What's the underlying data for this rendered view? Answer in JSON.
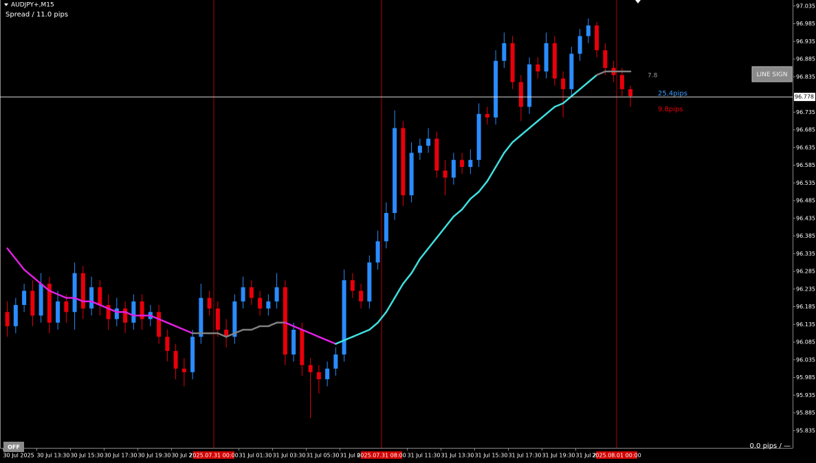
{
  "chart_data": {
    "type": "candlestick",
    "title": "AUDJPY+,M15",
    "subtitle": "Spread / 11.0 pips",
    "categories": [
      "30 Jul 2025",
      null,
      null,
      null,
      "30 Jul 13:30",
      null,
      null,
      null,
      "30 Jul 15:30",
      null,
      null,
      null,
      "30 Jul 17:30",
      null,
      null,
      null,
      "30 Jul 19:30",
      null,
      null,
      null,
      "30 Jul 21:",
      null,
      null,
      null,
      null,
      null,
      null,
      null,
      "31 Jul 01:30",
      null,
      null,
      null,
      "31 Jul 03:30",
      null,
      null,
      null,
      "31 Jul 05:30",
      null,
      null,
      null,
      "31 Jul 07:",
      null,
      null,
      null,
      null,
      null,
      null,
      null,
      "31 Jul 11:30",
      null,
      null,
      null,
      "31 Jul 13:30",
      null,
      null,
      null,
      "31 Jul 15:30",
      null,
      null,
      null,
      "31 Jul 17:30",
      null,
      null,
      null,
      "31 Jul 19:30",
      null,
      null,
      null,
      "31 Jul 21:",
      null,
      null,
      null,
      null,
      null,
      null
    ],
    "open": [
      96.17,
      96.13,
      96.19,
      96.23,
      96.16,
      96.25,
      96.14,
      96.2,
      96.17,
      96.28,
      96.18,
      96.24,
      96.19,
      96.15,
      96.18,
      96.14,
      96.2,
      96.15,
      96.17,
      96.1,
      96.06,
      96.01,
      96.0,
      96.1,
      96.21,
      96.18,
      96.12,
      96.1,
      96.2,
      96.24,
      96.21,
      96.18,
      96.2,
      96.24,
      96.05,
      96.12,
      96.02,
      96.0,
      95.98,
      96.01,
      96.05,
      96.26,
      96.23,
      96.2,
      96.31,
      96.37,
      96.45,
      96.69,
      96.5,
      96.62,
      96.64,
      96.66,
      96.57,
      96.55,
      96.6,
      96.58,
      96.6,
      96.73,
      96.72,
      96.88,
      96.93,
      96.82,
      96.75,
      96.87,
      96.85,
      96.93,
      96.83,
      96.8,
      96.9,
      96.95,
      96.98,
      96.91,
      96.86,
      96.84,
      96.8
    ],
    "high": [
      96.2,
      96.21,
      96.25,
      96.26,
      96.28,
      96.27,
      96.23,
      96.22,
      96.31,
      96.3,
      96.27,
      96.26,
      96.22,
      96.21,
      96.2,
      96.22,
      96.22,
      96.19,
      96.19,
      96.12,
      96.08,
      96.04,
      96.12,
      96.25,
      96.23,
      96.2,
      96.15,
      96.22,
      96.27,
      96.26,
      96.23,
      96.22,
      96.28,
      96.26,
      96.14,
      96.14,
      96.04,
      96.02,
      96.03,
      96.07,
      96.29,
      96.28,
      96.25,
      96.33,
      96.4,
      96.48,
      96.74,
      96.71,
      96.65,
      96.66,
      96.69,
      96.68,
      96.6,
      96.62,
      96.62,
      96.63,
      96.76,
      96.75,
      96.91,
      96.96,
      96.95,
      96.84,
      96.89,
      96.89,
      96.96,
      96.95,
      96.85,
      96.92,
      96.97,
      97.0,
      96.99,
      96.93,
      96.88,
      96.86,
      96.81
    ],
    "low": [
      96.1,
      96.11,
      96.17,
      96.13,
      96.14,
      96.11,
      96.12,
      96.14,
      96.12,
      96.15,
      96.16,
      96.16,
      96.12,
      96.13,
      96.11,
      96.12,
      96.12,
      96.13,
      96.08,
      96.03,
      95.98,
      95.96,
      95.98,
      96.08,
      96.16,
      96.1,
      96.07,
      96.08,
      96.18,
      96.19,
      96.16,
      96.16,
      96.18,
      96.02,
      96.03,
      95.99,
      95.87,
      95.94,
      95.96,
      95.99,
      96.03,
      96.21,
      96.18,
      96.18,
      96.29,
      96.35,
      96.43,
      96.47,
      96.48,
      96.6,
      96.62,
      96.55,
      96.5,
      96.53,
      96.56,
      96.56,
      96.58,
      96.7,
      96.7,
      96.86,
      96.8,
      96.71,
      96.73,
      96.83,
      96.83,
      96.81,
      96.72,
      96.78,
      96.88,
      96.93,
      96.89,
      96.84,
      96.82,
      96.78,
      96.75
    ],
    "close": [
      96.13,
      96.19,
      96.23,
      96.16,
      96.25,
      96.14,
      96.2,
      96.17,
      96.28,
      96.18,
      96.24,
      96.19,
      96.15,
      96.18,
      96.14,
      96.2,
      96.15,
      96.17,
      96.1,
      96.06,
      96.01,
      96.0,
      96.1,
      96.21,
      96.18,
      96.12,
      96.1,
      96.2,
      96.24,
      96.21,
      96.18,
      96.2,
      96.24,
      96.05,
      96.12,
      96.02,
      96.0,
      95.98,
      96.01,
      96.05,
      96.26,
      96.23,
      96.2,
      96.31,
      96.37,
      96.45,
      96.69,
      96.5,
      96.62,
      96.64,
      96.66,
      96.57,
      96.55,
      96.6,
      96.58,
      96.6,
      96.73,
      96.72,
      96.88,
      96.93,
      96.82,
      96.75,
      96.87,
      96.85,
      96.93,
      96.83,
      96.8,
      96.9,
      96.95,
      96.98,
      96.91,
      96.86,
      96.84,
      96.8,
      96.78
    ],
    "up_color": "#2a8cff",
    "down_color": "#e8000b",
    "ma": {
      "values": [
        96.35,
        96.32,
        96.29,
        96.27,
        96.25,
        96.23,
        96.22,
        96.21,
        96.21,
        96.2,
        96.2,
        96.19,
        96.18,
        96.17,
        96.17,
        96.16,
        96.16,
        96.16,
        96.15,
        96.14,
        96.13,
        96.12,
        96.11,
        96.11,
        96.11,
        96.11,
        96.1,
        96.11,
        96.12,
        96.12,
        96.13,
        96.13,
        96.14,
        96.14,
        96.13,
        96.12,
        96.11,
        96.1,
        96.09,
        96.08,
        96.09,
        96.1,
        96.11,
        96.12,
        96.14,
        96.17,
        96.21,
        96.25,
        96.28,
        96.32,
        96.35,
        96.38,
        96.41,
        96.44,
        96.46,
        96.49,
        96.51,
        96.54,
        96.58,
        96.62,
        96.65,
        96.67,
        96.69,
        96.71,
        96.73,
        96.75,
        96.76,
        96.78,
        96.8,
        96.82,
        96.84,
        96.85,
        96.85,
        96.85,
        96.85
      ],
      "colors": [
        "#e020e0",
        "#e020e0",
        "#e020e0",
        "#e020e0",
        "#e020e0",
        "#e020e0",
        "#e020e0",
        "#e020e0",
        "#e020e0",
        "#e020e0",
        "#e020e0",
        "#e020e0",
        "#e020e0",
        "#e020e0",
        "#e020e0",
        "#e020e0",
        "#e020e0",
        "#e020e0",
        "#e020e0",
        "#e020e0",
        "#e020e0",
        "#e020e0",
        "#e020e0",
        "#808080",
        "#808080",
        "#808080",
        "#808080",
        "#808080",
        "#808080",
        "#808080",
        "#808080",
        "#808080",
        "#808080",
        "#808080",
        "#e020e0",
        "#e020e0",
        "#e020e0",
        "#e020e0",
        "#e020e0",
        "#e020e0",
        "#40e0e0",
        "#40e0e0",
        "#40e0e0",
        "#40e0e0",
        "#40e0e0",
        "#40e0e0",
        "#40e0e0",
        "#40e0e0",
        "#40e0e0",
        "#40e0e0",
        "#40e0e0",
        "#40e0e0",
        "#40e0e0",
        "#40e0e0",
        "#40e0e0",
        "#40e0e0",
        "#40e0e0",
        "#40e0e0",
        "#40e0e0",
        "#40e0e0",
        "#40e0e0",
        "#40e0e0",
        "#40e0e0",
        "#40e0e0",
        "#40e0e0",
        "#40e0e0",
        "#40e0e0",
        "#40e0e0",
        "#40e0e0",
        "#40e0e0",
        "#40e0e0",
        "#808080",
        "#808080",
        "#808080",
        "#808080"
      ]
    },
    "ylim": [
      95.786,
      97.052
    ],
    "yticks": [
      97.035,
      96.985,
      96.935,
      96.885,
      96.835,
      96.735,
      96.685,
      96.635,
      96.585,
      96.535,
      96.485,
      96.435,
      96.385,
      96.335,
      96.285,
      96.235,
      96.185,
      96.135,
      96.085,
      96.035,
      95.985,
      95.935,
      95.885,
      95.835
    ],
    "price": 96.778,
    "vline_labels": [
      "2025.07.31 00:00",
      "2025.07.31 08:00",
      "2025.08.01 00:00"
    ],
    "ma_label": "7.8",
    "upper_label": "25.4pips",
    "lower_label": "9.8pips",
    "button": "LINE SIGN",
    "toggle": "OFF",
    "footer": "0.0 pips / —"
  }
}
